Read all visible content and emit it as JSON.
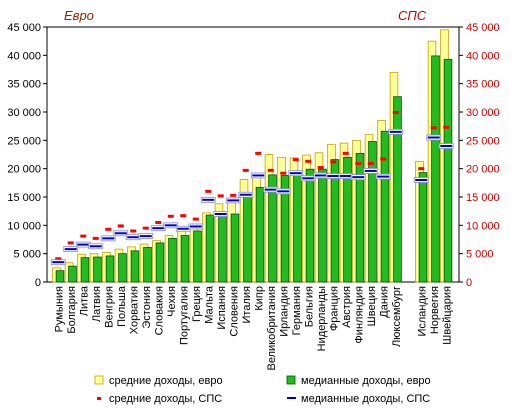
{
  "chart_data": {
    "type": "bar",
    "left_axis_title": "Евро",
    "right_axis_title": "СПС",
    "ylim": [
      0,
      45000
    ],
    "left_ticks": [
      "0",
      "5 000",
      "10 000",
      "15 000",
      "20 000",
      "25 000",
      "30 000",
      "35 000",
      "40 000",
      "45 000"
    ],
    "right_ticks": [
      "0",
      "5 000",
      "10 000",
      "15 000",
      "20 000",
      "25 000",
      "30 000",
      "35 000",
      "40 000",
      "45 000"
    ],
    "grid": false,
    "legend_position": "bottom",
    "series_colors": {
      "mean_eur": "#ffff99",
      "median_eur": "#22bb22",
      "mean_pps": "#ff0000",
      "median_pps": "#0000cc"
    },
    "legend": [
      {
        "key": "mean_eur",
        "label": "средние доходы, евро"
      },
      {
        "key": "median_eur",
        "label": "медианные доходы, евро"
      },
      {
        "key": "mean_pps",
        "label": "средние доходы, СПС"
      },
      {
        "key": "median_pps",
        "label": "медианные доходы, СПС"
      }
    ],
    "categories": [
      "Румыния",
      "Болгария",
      "Литва",
      "Латвия",
      "Венгрия",
      "Польша",
      "Хорватия",
      "Эстония",
      "Словакия",
      "Чехия",
      "Португалия",
      "Греция",
      "Мальта",
      "Испания",
      "Словения",
      "Италия",
      "Кипр",
      "Великобритания",
      "Ирландия",
      "Германия",
      "Бельгия",
      "Нидерланды",
      "Франция",
      "Австрия",
      "Финляндия",
      "Швеция",
      "Дания",
      "Люксембург",
      "Исландия",
      "Норвегия",
      "Швейцария"
    ],
    "series": [
      {
        "key": "mean_eur",
        "values": [
          2500,
          3400,
          4900,
          5000,
          5200,
          5800,
          6200,
          6700,
          7300,
          8200,
          9700,
          10200,
          12200,
          13800,
          14000,
          18100,
          18800,
          22500,
          22000,
          21900,
          22400,
          22800,
          24300,
          24500,
          25000,
          26000,
          28500,
          37000,
          21300,
          42500,
          44500
        ]
      },
      {
        "key": "median_eur",
        "values": [
          2000,
          2800,
          4300,
          4400,
          4600,
          5000,
          5500,
          6100,
          6900,
          7700,
          8200,
          9000,
          11800,
          12300,
          12000,
          15500,
          16700,
          18900,
          18800,
          19200,
          19900,
          19900,
          21600,
          22000,
          22700,
          24800,
          26600,
          32700,
          19300,
          39900,
          39300
        ]
      },
      {
        "key": "mean_pps",
        "values": [
          4100,
          6900,
          8100,
          7700,
          9300,
          9900,
          9000,
          9500,
          10500,
          11600,
          11700,
          11100,
          16000,
          15200,
          15300,
          19700,
          22700,
          19700,
          19200,
          21600,
          21300,
          20200,
          21200,
          22700,
          20900,
          20900,
          21700,
          29900,
          20000,
          27200,
          27300
        ]
      },
      {
        "key": "median_pps",
        "values": [
          3500,
          5800,
          6600,
          6300,
          7700,
          8600,
          7900,
          8100,
          9500,
          10000,
          9400,
          9800,
          14500,
          12000,
          14400,
          15400,
          18800,
          16300,
          16000,
          19200,
          18300,
          18800,
          18700,
          18700,
          18500,
          19600,
          18600,
          26500,
          18000,
          25500,
          24000
        ]
      }
    ]
  }
}
